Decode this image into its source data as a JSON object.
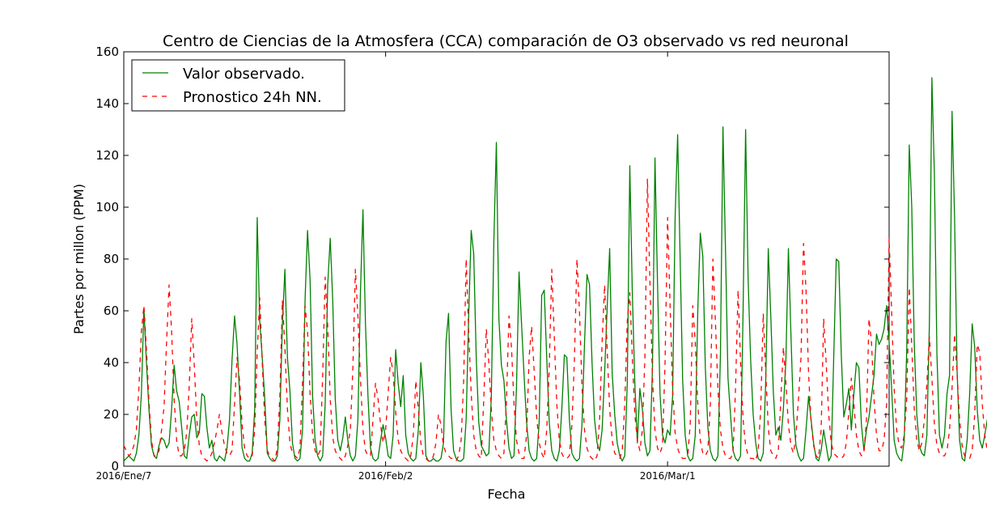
{
  "chart_data": {
    "type": "line",
    "title": "Centro de Ciencias de la Atmosfera (CCA) comparación de O3 observado vs red neuronal",
    "xlabel": "Fecha",
    "ylabel": "Partes por millon (PPM)",
    "ylim": [
      0,
      160
    ],
    "yticks": [
      0,
      20,
      40,
      60,
      80,
      100,
      120,
      140,
      160
    ],
    "grid": false,
    "legend_position": "top-left",
    "x_unit": "day",
    "xlim": [
      "2016-01-07",
      "2016-03-23"
    ],
    "xticks": [
      {
        "date": "2016-01-07",
        "label": "2016/Ene/7"
      },
      {
        "date": "2016-02-02",
        "label": "2016/Feb/2"
      },
      {
        "date": "2016-03-01",
        "label": "2016/Mar/1"
      }
    ],
    "series": [
      {
        "name": "Valor observado.",
        "color": "#008000",
        "style": "solid",
        "x_start": "2016-01-07",
        "step_hours": 6,
        "values": [
          2,
          3,
          4,
          3,
          2,
          5,
          12,
          28,
          61,
          40,
          22,
          8,
          4,
          3,
          8,
          11,
          10,
          7,
          9,
          22,
          39,
          29,
          25,
          15,
          4,
          3,
          12,
          19,
          20,
          11,
          13,
          28,
          27,
          15,
          7,
          10,
          3,
          2,
          4,
          3,
          2,
          7,
          18,
          41,
          58,
          47,
          28,
          7,
          3,
          2,
          2,
          5,
          22,
          96,
          56,
          42,
          26,
          5,
          3,
          2,
          2,
          4,
          18,
          55,
          76,
          42,
          29,
          9,
          3,
          2,
          3,
          14,
          64,
          91,
          72,
          27,
          10,
          4,
          2,
          4,
          24,
          70,
          88,
          64,
          26,
          10,
          6,
          11,
          19,
          10,
          4,
          2,
          4,
          18,
          67,
          99,
          55,
          27,
          7,
          3,
          2,
          3,
          10,
          16,
          11,
          4,
          3,
          12,
          45,
          32,
          23,
          35,
          12,
          5,
          3,
          2,
          3,
          14,
          40,
          27,
          4,
          2,
          2,
          3,
          2,
          2,
          3,
          9,
          48,
          59,
          22,
          6,
          3,
          2,
          2,
          3,
          18,
          58,
          91,
          82,
          42,
          17,
          8,
          6,
          4,
          5,
          27,
          87,
          125,
          57,
          39,
          33,
          18,
          7,
          3,
          4,
          31,
          75,
          55,
          35,
          17,
          6,
          3,
          2,
          3,
          17,
          66,
          68,
          42,
          17,
          6,
          3,
          2,
          6,
          22,
          43,
          42,
          18,
          5,
          3,
          2,
          3,
          16,
          47,
          74,
          70,
          40,
          18,
          9,
          6,
          14,
          36,
          61,
          84,
          36,
          20,
          9,
          4,
          2,
          4,
          32,
          116,
          67,
          32,
          9,
          30,
          22,
          9,
          4,
          6,
          38,
          119,
          71,
          28,
          12,
          9,
          14,
          12,
          27,
          96,
          128,
          80,
          33,
          12,
          4,
          2,
          3,
          12,
          60,
          90,
          81,
          38,
          15,
          6,
          3,
          2,
          4,
          43,
          131,
          84,
          34,
          20,
          6,
          3,
          2,
          4,
          60,
          130,
          72,
          41,
          20,
          9,
          3,
          2,
          5,
          33,
          84,
          58,
          29,
          12,
          15,
          10,
          22,
          41,
          84,
          51,
          20,
          8,
          4,
          2,
          3,
          14,
          27,
          18,
          9,
          3,
          2,
          6,
          14,
          8,
          2,
          4,
          42,
          80,
          79,
          43,
          19,
          24,
          30,
          14,
          28,
          40,
          38,
          16,
          6,
          14,
          19,
          27,
          35,
          51,
          47,
          49,
          53,
          62,
          48,
          30,
          10,
          5,
          3,
          2,
          10,
          45,
          124,
          100,
          47,
          20,
          8,
          5,
          4,
          12,
          55,
          150,
          112,
          43,
          12,
          7,
          12,
          28,
          35,
          137,
          96,
          37,
          10,
          3,
          2,
          10,
          28,
          55,
          46,
          22,
          10,
          7,
          12,
          18,
          17,
          10,
          6,
          12,
          26,
          62,
          50,
          10,
          3,
          2,
          4,
          18,
          61,
          38,
          12,
          3,
          2,
          3,
          4
        ]
      },
      {
        "name": "Pronostico 24h NN.",
        "color": "#ff0000",
        "style": "dashed",
        "x_start": "2016-01-07",
        "step_hours": 6,
        "values": [
          8,
          6,
          4,
          5,
          8,
          14,
          30,
          52,
          62,
          45,
          25,
          10,
          4,
          4,
          6,
          14,
          23,
          48,
          70,
          52,
          26,
          10,
          4,
          4,
          6,
          13,
          31,
          57,
          39,
          18,
          8,
          4,
          3,
          2,
          3,
          5,
          9,
          14,
          20,
          13,
          8,
          5,
          4,
          6,
          24,
          42,
          33,
          16,
          7,
          4,
          3,
          4,
          14,
          44,
          65,
          40,
          18,
          6,
          4,
          3,
          2,
          7,
          27,
          64,
          46,
          22,
          9,
          5,
          4,
          3,
          7,
          32,
          62,
          52,
          28,
          12,
          6,
          4,
          6,
          35,
          73,
          54,
          26,
          11,
          6,
          4,
          3,
          2,
          4,
          8,
          14,
          38,
          76,
          58,
          34,
          14,
          6,
          4,
          4,
          18,
          32,
          26,
          16,
          9,
          14,
          28,
          42,
          36,
          21,
          10,
          6,
          4,
          3,
          2,
          4,
          12,
          33,
          22,
          9,
          4,
          3,
          2,
          2,
          4,
          9,
          20,
          16,
          8,
          5,
          4,
          3,
          3,
          2,
          4,
          10,
          33,
          80,
          52,
          28,
          12,
          6,
          4,
          3,
          26,
          53,
          40,
          22,
          10,
          6,
          4,
          3,
          5,
          25,
          58,
          46,
          24,
          10,
          5,
          3,
          3,
          12,
          42,
          54,
          37,
          19,
          9,
          5,
          3,
          14,
          38,
          76,
          50,
          24,
          10,
          5,
          3,
          3,
          4,
          16,
          41,
          80,
          60,
          31,
          14,
          7,
          4,
          3,
          2,
          4,
          18,
          48,
          70,
          45,
          22,
          10,
          5,
          4,
          3,
          6,
          24,
          56,
          67,
          42,
          20,
          10,
          6,
          14,
          42,
          111,
          71,
          34,
          14,
          7,
          5,
          8,
          40,
          96,
          62,
          30,
          13,
          7,
          4,
          3,
          3,
          4,
          16,
          62,
          48,
          24,
          10,
          5,
          4,
          6,
          24,
          80,
          56,
          30,
          14,
          7,
          4,
          3,
          3,
          5,
          30,
          68,
          40,
          18,
          8,
          4,
          3,
          3,
          2,
          6,
          22,
          59,
          36,
          15,
          6,
          4,
          3,
          6,
          26,
          46,
          32,
          16,
          8,
          5,
          12,
          26,
          42,
          86,
          68,
          36,
          17,
          8,
          4,
          3,
          14,
          57,
          40,
          20,
          9,
          5,
          4,
          3,
          3,
          4,
          9,
          21,
          34,
          24,
          12,
          6,
          4,
          5,
          18,
          57,
          48,
          26,
          12,
          6,
          6,
          10,
          24,
          88,
          60,
          30,
          14,
          8,
          7,
          12,
          26,
          69,
          46,
          22,
          10,
          6,
          9,
          18,
          32,
          50,
          34,
          16,
          8,
          5,
          4,
          4,
          6,
          14,
          30,
          51,
          36,
          18,
          8,
          4,
          3,
          3,
          6,
          20,
          47,
          44,
          24,
          12,
          6,
          4
        ]
      }
    ]
  }
}
